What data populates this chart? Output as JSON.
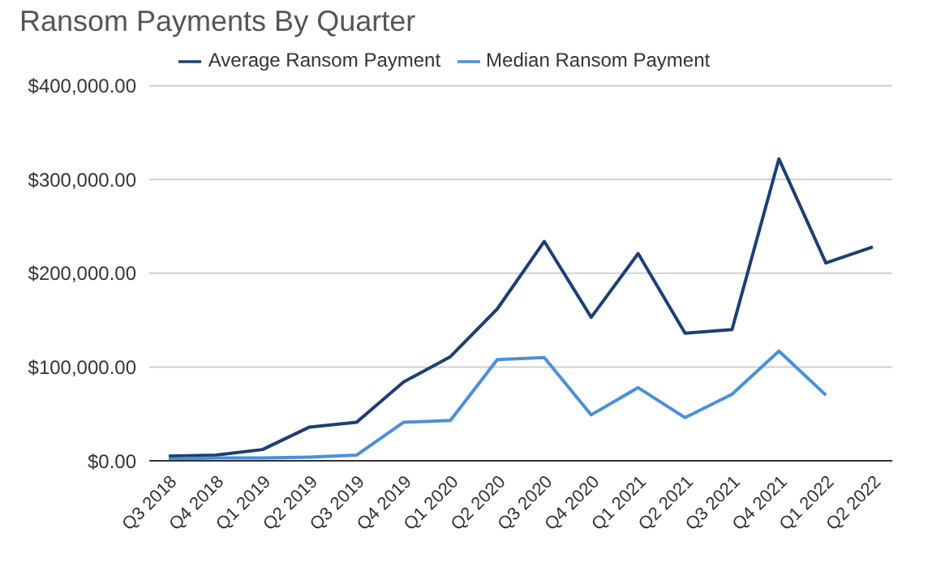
{
  "chart_data": {
    "type": "line",
    "title": "Ransom Payments By Quarter",
    "categories": [
      "Q3 2018",
      "Q4 2018",
      "Q1 2019",
      "Q2 2019",
      "Q3 2019",
      "Q4 2019",
      "Q1 2020",
      "Q2 2020",
      "Q3 2020",
      "Q4 2020",
      "Q1 2021",
      "Q2 2021",
      "Q3 2021",
      "Q4 2021",
      "Q1 2022",
      "Q2 2022"
    ],
    "series": [
      {
        "name": "Average Ransom Payment",
        "color": "#1c3f75",
        "values": [
          5000,
          6000,
          12000,
          36000,
          41000,
          84000,
          111000,
          162000,
          234000,
          153000,
          221000,
          136000,
          140000,
          322000,
          211000,
          228000
        ]
      },
      {
        "name": "Median Ransom Payment",
        "color": "#4a90d9",
        "values": [
          2000,
          3000,
          3000,
          4000,
          6000,
          41000,
          43000,
          108000,
          110000,
          49000,
          78000,
          46000,
          71000,
          117000,
          70000,
          null
        ]
      }
    ],
    "ylim": [
      0,
      400000
    ],
    "yticks": [
      {
        "value": 0,
        "label": "$0.00"
      },
      {
        "value": 100000,
        "label": "$100,000.00"
      },
      {
        "value": 200000,
        "label": "$200,000.00"
      },
      {
        "value": 300000,
        "label": "$300,000.00"
      },
      {
        "value": 400000,
        "label": "$400,000.00"
      }
    ],
    "grid": "y",
    "legend": "top",
    "marker": "none",
    "line_style": "solid"
  }
}
